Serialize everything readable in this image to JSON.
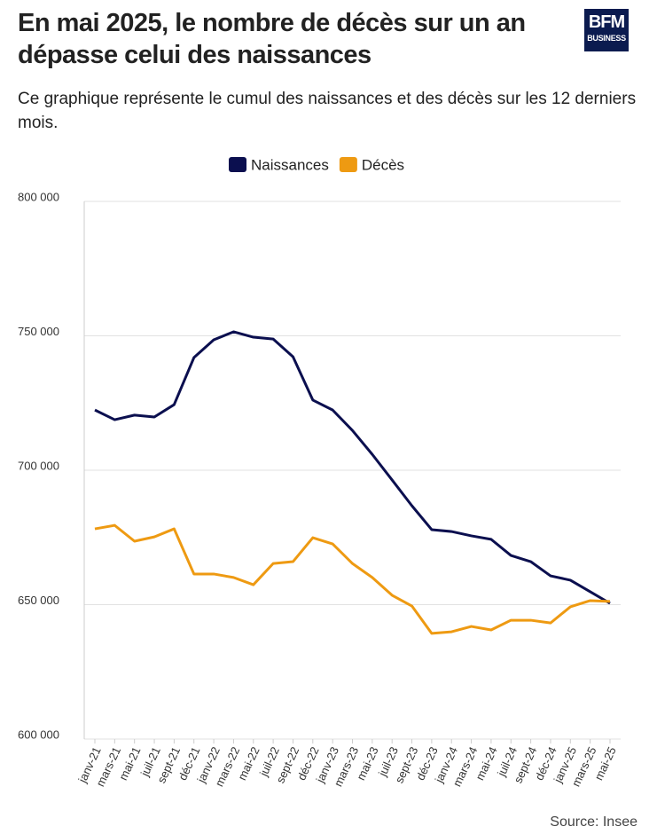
{
  "logo": {
    "line1": "BFM",
    "line2": "BUSINESS"
  },
  "chart_data": {
    "type": "line",
    "title": "En mai 2025, le nombre de décès sur un an dépasse celui des naissances",
    "subtitle": "Ce graphique représente le cumul des naissances et des décès sur les 12 derniers mois.",
    "source": "Source: Insee",
    "categories": [
      "janv-21",
      "mars-21",
      "mai-21",
      "juil-21",
      "sept-21",
      "déc-21",
      "janv-22",
      "mars-22",
      "mai-22",
      "juil-22",
      "sept-22",
      "déc-22",
      "janv-23",
      "mars-23",
      "mai-23",
      "juil-23",
      "sept-23",
      "déc-23",
      "janv-24",
      "mars-24",
      "mai-24",
      "juil-24",
      "sept-24",
      "déc-24",
      "janv-25",
      "mars-25",
      "mai-25"
    ],
    "series": [
      {
        "name": "Naissances",
        "color": "#0b0f4f",
        "values": [
          722400,
          718800,
          720500,
          719800,
          724400,
          741900,
          748500,
          751500,
          749500,
          748800,
          742200,
          726100,
          722400,
          714800,
          705900,
          696400,
          686800,
          677900,
          677200,
          675600,
          674300,
          668300,
          666000,
          660700,
          659100,
          654800,
          650500
        ]
      },
      {
        "name": "Décès",
        "color": "#ee9a12",
        "values": [
          678200,
          679500,
          673600,
          675200,
          678200,
          661400,
          661400,
          660100,
          657400,
          665300,
          666000,
          674900,
          672600,
          665300,
          660100,
          653500,
          649500,
          639300,
          639900,
          641900,
          640600,
          644200,
          644200,
          643200,
          649200,
          651500,
          651200
        ]
      }
    ],
    "ylim": [
      600000,
      800000
    ],
    "yticks": [
      {
        "value": 600000,
        "label": "600 000"
      },
      {
        "value": 650000,
        "label": "650 000"
      },
      {
        "value": 700000,
        "label": "700 000"
      },
      {
        "value": 750000,
        "label": "750 000"
      },
      {
        "value": 800000,
        "label": "800 000"
      }
    ],
    "grid": true,
    "legend": "top"
  }
}
